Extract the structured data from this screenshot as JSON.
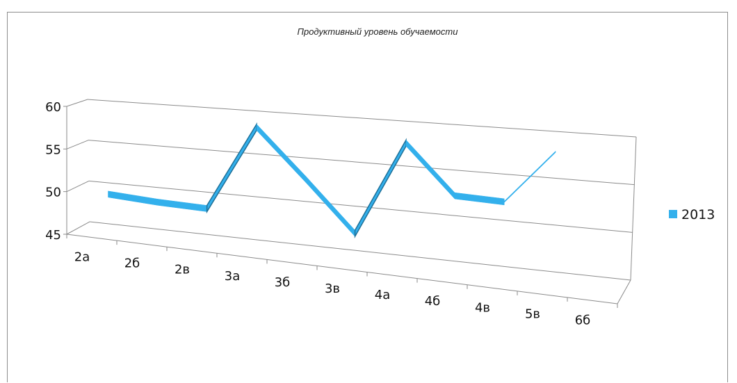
{
  "chart_data": {
    "type": "line",
    "title": "Продуктивный уровень обучаемости",
    "categories": [
      "2а",
      "2б",
      "2в",
      "3а",
      "3б",
      "3в",
      "4а",
      "4б",
      "4в",
      "5в",
      "6б"
    ],
    "series": [
      {
        "name": "2013",
        "values": [
          50.2,
          49.8,
          49.6,
          59.6,
          54.0,
          48.4,
          59.0,
          53.6,
          53.4,
          59.2,
          null
        ]
      }
    ],
    "y_ticks": [
      "45",
      "50",
      "55",
      "60"
    ],
    "ylim": [
      45,
      60
    ],
    "grid": true,
    "legend": "right",
    "view": "3d-perspective",
    "series_color": "#33b0ec"
  }
}
